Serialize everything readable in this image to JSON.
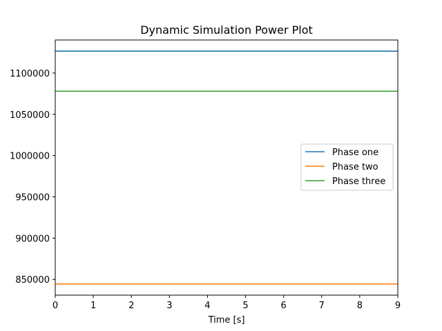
{
  "chart_data": {
    "type": "line",
    "title": "Dynamic Simulation Power Plot",
    "xlabel": "Time [s]",
    "ylabel": "",
    "xlim": [
      0,
      9
    ],
    "ylim": [
      831000,
      1140000
    ],
    "x_ticks": [
      0,
      1,
      2,
      3,
      4,
      5,
      6,
      7,
      8,
      9
    ],
    "y_ticks": [
      850000,
      900000,
      950000,
      1000000,
      1050000,
      1100000
    ],
    "grid": false,
    "legend_position": "center-right",
    "series": [
      {
        "name": "Phase one",
        "color": "#1f77b4",
        "x": [
          0,
          9
        ],
        "y": [
          1126500,
          1126500
        ]
      },
      {
        "name": "Phase two",
        "color": "#ff7f0e",
        "x": [
          0,
          9
        ],
        "y": [
          844500,
          844500
        ]
      },
      {
        "name": "Phase three",
        "color": "#2ca02c",
        "x": [
          0,
          9
        ],
        "y": [
          1078000,
          1078000
        ]
      }
    ]
  }
}
